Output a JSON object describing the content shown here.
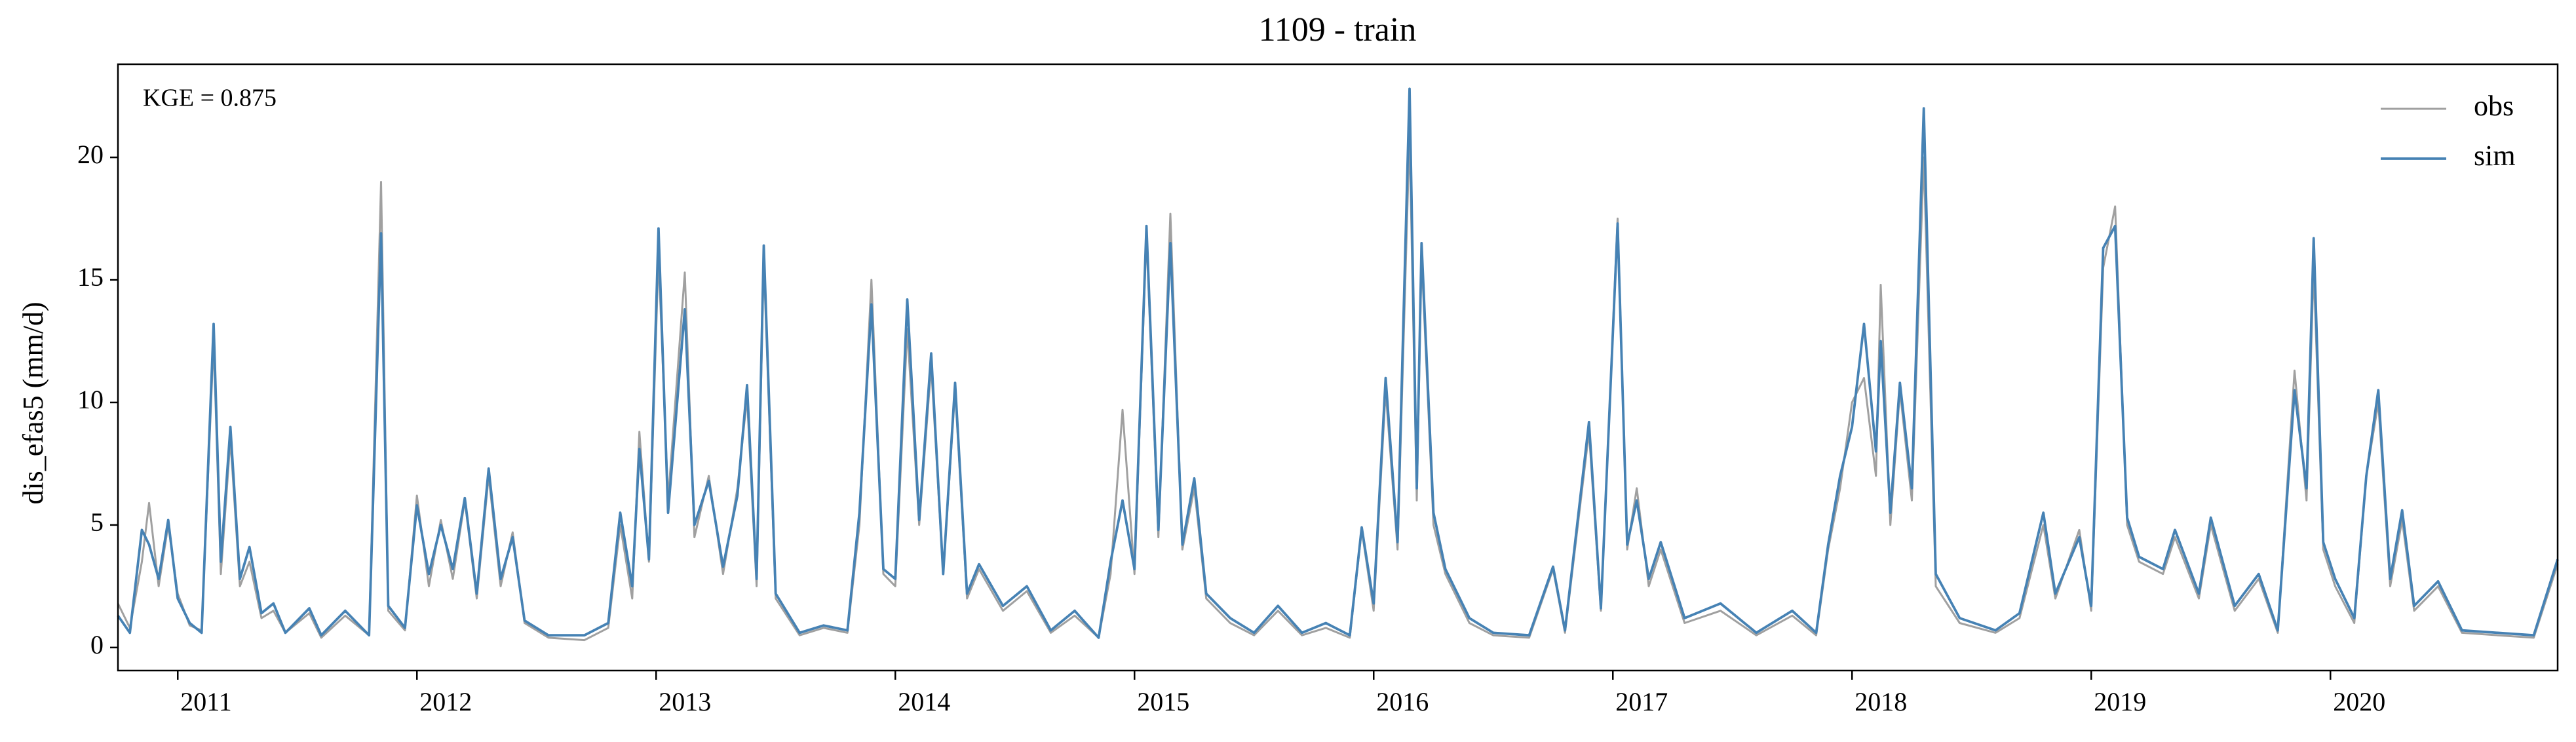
{
  "chart_data": {
    "type": "line",
    "title": "1109 - train",
    "ylabel": "dis_efas5 (mm/d)",
    "annotation": "KGE = 0.875",
    "legend": "upper right",
    "grid": false,
    "xlim": [
      2010.75,
      2020.95
    ],
    "xticks": [
      2011,
      2012,
      2013,
      2014,
      2015,
      2016,
      2017,
      2018,
      2019,
      2020
    ],
    "ylim": [
      -0.94,
      23.8
    ],
    "yticks": [
      0,
      5,
      10,
      15,
      20
    ],
    "x": [
      2010.75,
      2010.8,
      2010.85,
      2010.88,
      2010.92,
      2010.96,
      2011.0,
      2011.05,
      2011.1,
      2011.15,
      2011.18,
      2011.22,
      2011.26,
      2011.3,
      2011.35,
      2011.4,
      2011.45,
      2011.55,
      2011.6,
      2011.7,
      2011.8,
      2011.85,
      2011.88,
      2011.95,
      2012.0,
      2012.05,
      2012.1,
      2012.15,
      2012.2,
      2012.25,
      2012.3,
      2012.35,
      2012.4,
      2012.45,
      2012.55,
      2012.7,
      2012.8,
      2012.85,
      2012.9,
      2012.93,
      2012.97,
      2013.01,
      2013.05,
      2013.12,
      2013.16,
      2013.22,
      2013.28,
      2013.34,
      2013.38,
      2013.42,
      2013.45,
      2013.5,
      2013.6,
      2013.7,
      2013.8,
      2013.85,
      2013.9,
      2013.95,
      2014.0,
      2014.05,
      2014.1,
      2014.15,
      2014.2,
      2014.25,
      2014.3,
      2014.35,
      2014.45,
      2014.55,
      2014.65,
      2014.75,
      2014.85,
      2014.9,
      2014.95,
      2015.0,
      2015.05,
      2015.1,
      2015.15,
      2015.2,
      2015.25,
      2015.3,
      2015.4,
      2015.5,
      2015.6,
      2015.7,
      2015.8,
      2015.9,
      2015.95,
      2016.0,
      2016.05,
      2016.1,
      2016.15,
      2016.18,
      2016.2,
      2016.25,
      2016.3,
      2016.4,
      2016.5,
      2016.65,
      2016.75,
      2016.8,
      2016.9,
      2016.95,
      2017.02,
      2017.06,
      2017.1,
      2017.15,
      2017.2,
      2017.3,
      2017.45,
      2017.6,
      2017.75,
      2017.85,
      2017.9,
      2017.95,
      2018.0,
      2018.05,
      2018.1,
      2018.12,
      2018.16,
      2018.2,
      2018.25,
      2018.3,
      2018.35,
      2018.45,
      2018.6,
      2018.7,
      2018.8,
      2018.85,
      2018.95,
      2019.0,
      2019.05,
      2019.1,
      2019.15,
      2019.2,
      2019.3,
      2019.35,
      2019.45,
      2019.5,
      2019.6,
      2019.7,
      2019.78,
      2019.85,
      2019.9,
      2019.93,
      2019.97,
      2020.02,
      2020.1,
      2020.15,
      2020.2,
      2020.25,
      2020.3,
      2020.35,
      2020.45,
      2020.55,
      2020.7,
      2020.85,
      2020.95
    ],
    "series": [
      {
        "name": "obs",
        "color": "#a0a0a0",
        "values": [
          1.8,
          0.8,
          3.5,
          5.9,
          2.5,
          5.0,
          2.2,
          0.9,
          0.7,
          12.5,
          3.0,
          8.5,
          2.5,
          3.5,
          1.2,
          1.5,
          0.6,
          1.4,
          0.4,
          1.3,
          0.5,
          19.0,
          1.5,
          0.7,
          6.2,
          2.5,
          5.2,
          2.8,
          6.0,
          2.0,
          7.0,
          2.5,
          4.7,
          1.0,
          0.4,
          0.3,
          0.8,
          5.0,
          2.0,
          8.8,
          3.5,
          16.0,
          6.0,
          15.3,
          4.5,
          7.0,
          3.0,
          6.5,
          10.2,
          2.5,
          15.8,
          2.0,
          0.5,
          0.8,
          0.6,
          5.0,
          15.0,
          3.0,
          2.5,
          13.0,
          5.0,
          11.5,
          3.0,
          10.5,
          2.0,
          3.2,
          1.5,
          2.3,
          0.6,
          1.3,
          0.4,
          3.0,
          9.7,
          3.0,
          16.8,
          4.5,
          17.7,
          4.0,
          6.5,
          2.0,
          1.0,
          0.5,
          1.5,
          0.5,
          0.8,
          0.4,
          4.8,
          1.5,
          10.5,
          4.0,
          21.0,
          6.0,
          16.0,
          5.0,
          3.0,
          1.0,
          0.5,
          0.4,
          3.2,
          0.6,
          8.8,
          1.5,
          17.5,
          4.0,
          6.5,
          2.5,
          4.0,
          1.0,
          1.5,
          0.5,
          1.3,
          0.5,
          4.0,
          6.5,
          10.0,
          11.0,
          7.0,
          14.8,
          5.0,
          10.5,
          6.0,
          20.0,
          2.5,
          1.0,
          0.6,
          1.2,
          5.0,
          2.0,
          4.8,
          1.5,
          15.5,
          18.0,
          5.0,
          3.5,
          3.0,
          4.5,
          2.0,
          5.0,
          1.5,
          2.8,
          0.6,
          11.3,
          6.0,
          15.5,
          4.0,
          2.5,
          1.0,
          7.0,
          10.0,
          2.5,
          5.2,
          1.5,
          2.5,
          0.6,
          0.5,
          0.4,
          3.4
        ]
      },
      {
        "name": "sim",
        "color": "#4682b4",
        "values": [
          1.3,
          0.6,
          4.8,
          4.2,
          2.8,
          5.2,
          2.0,
          1.0,
          0.6,
          13.2,
          3.5,
          9.0,
          2.8,
          4.1,
          1.4,
          1.8,
          0.6,
          1.6,
          0.5,
          1.5,
          0.5,
          16.9,
          1.7,
          0.8,
          5.8,
          3.0,
          5.0,
          3.2,
          6.1,
          2.2,
          7.3,
          2.8,
          4.5,
          1.1,
          0.5,
          0.5,
          1.0,
          5.5,
          2.5,
          8.1,
          3.6,
          17.1,
          5.5,
          13.8,
          5.0,
          6.8,
          3.3,
          6.2,
          10.7,
          2.8,
          16.4,
          2.2,
          0.6,
          0.9,
          0.7,
          5.5,
          14.0,
          3.2,
          2.8,
          14.2,
          5.2,
          12.0,
          3.0,
          10.8,
          2.2,
          3.4,
          1.7,
          2.5,
          0.7,
          1.5,
          0.4,
          3.5,
          6.0,
          3.2,
          17.2,
          4.8,
          16.5,
          4.2,
          6.9,
          2.2,
          1.2,
          0.6,
          1.7,
          0.6,
          1.0,
          0.5,
          4.9,
          1.8,
          11.0,
          4.3,
          22.8,
          6.5,
          16.5,
          5.5,
          3.2,
          1.2,
          0.6,
          0.5,
          3.3,
          0.7,
          9.2,
          1.6,
          17.3,
          4.2,
          6.0,
          2.8,
          4.3,
          1.2,
          1.8,
          0.6,
          1.5,
          0.6,
          4.2,
          7.0,
          9.0,
          13.2,
          8.0,
          12.5,
          5.5,
          10.8,
          6.5,
          22.0,
          3.0,
          1.2,
          0.7,
          1.4,
          5.5,
          2.2,
          4.5,
          1.7,
          16.3,
          17.2,
          5.3,
          3.7,
          3.2,
          4.8,
          2.2,
          5.3,
          1.7,
          3.0,
          0.7,
          10.5,
          6.5,
          16.7,
          4.3,
          2.8,
          1.2,
          7.0,
          10.5,
          2.8,
          5.6,
          1.7,
          2.7,
          0.7,
          0.6,
          0.5,
          3.6
        ]
      }
    ]
  }
}
